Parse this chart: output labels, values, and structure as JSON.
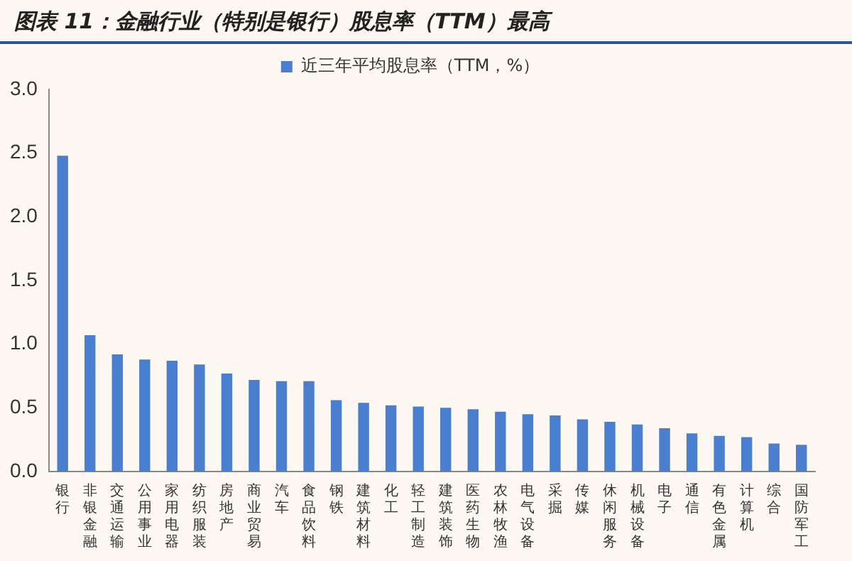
{
  "chart_data": {
    "type": "bar",
    "title": "图表 11：金融行业（特别是银行）股息率（TTM）最高",
    "categories": [
      "银行",
      "非银金融",
      "交通运输",
      "公用事业",
      "家用电器",
      "纺织服装",
      "房地产",
      "商业贸易",
      "汽车",
      "食品饮料",
      "钢铁",
      "建筑材料",
      "化工",
      "轻工制造",
      "建筑装饰",
      "医药生物",
      "农林牧渔",
      "电气设备",
      "采掘",
      "传媒",
      "休闲服务",
      "机械设备",
      "电子",
      "通信",
      "有色金属",
      "计算机",
      "综合",
      "国防军工"
    ],
    "series": [
      {
        "name": "近三年平均股息率（TTM，%）",
        "color": "#4a7fcf",
        "values": [
          2.48,
          1.07,
          0.92,
          0.88,
          0.87,
          0.84,
          0.77,
          0.72,
          0.71,
          0.71,
          0.56,
          0.54,
          0.52,
          0.51,
          0.5,
          0.49,
          0.47,
          0.45,
          0.44,
          0.41,
          0.39,
          0.37,
          0.34,
          0.3,
          0.28,
          0.27,
          0.22,
          0.21
        ]
      }
    ],
    "ylim": [
      0,
      3
    ],
    "yticks": [
      {
        "value": 0,
        "label": "0.0"
      },
      0.5,
      {
        "value": 1,
        "label": "1.0"
      },
      1.5,
      {
        "value": 2,
        "label": "2.0"
      },
      2.5,
      {
        "value": 3,
        "label": "3.0"
      }
    ],
    "grid": false,
    "legend": "top"
  }
}
